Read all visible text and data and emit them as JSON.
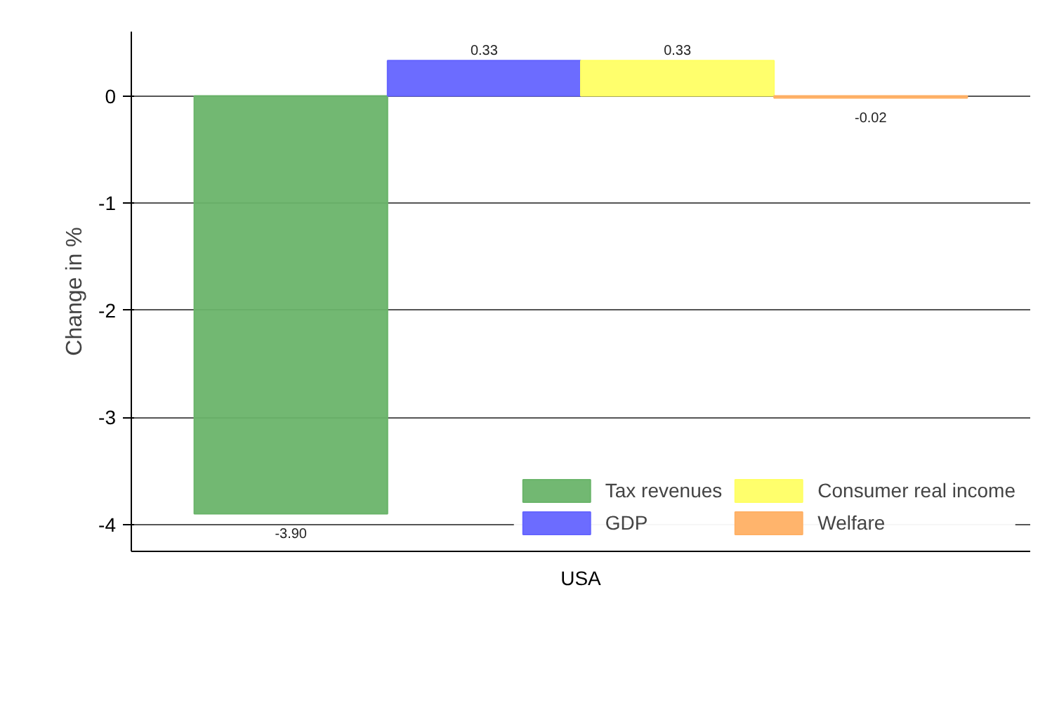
{
  "chart_data": {
    "type": "bar",
    "ylabel": "Change in %",
    "categories": [
      "USA"
    ],
    "series": [
      {
        "name": "Tax revenues",
        "color": "#6ab46a",
        "values": [
          -3.9
        ],
        "value_labels": [
          "-3.90"
        ]
      },
      {
        "name": "GDP",
        "color": "#6464ff",
        "values": [
          0.33
        ],
        "value_labels": [
          "0.33"
        ]
      },
      {
        "name": "Consumer real income",
        "color": "#ffff64",
        "values": [
          0.33
        ],
        "value_labels": [
          "0.33"
        ]
      },
      {
        "name": "Welfare",
        "color": "#ffb064",
        "values": [
          -0.02
        ],
        "value_labels": [
          "-0.02"
        ]
      }
    ],
    "ylim": [
      -4.25,
      0.6
    ],
    "yticks": [
      {
        "value": -4,
        "label": "-4"
      },
      {
        "value": -3,
        "label": "-3"
      },
      {
        "value": -2,
        "label": "-2"
      },
      {
        "value": -1,
        "label": "-1"
      },
      0
    ],
    "grid": "y",
    "legend": "bottom right"
  }
}
